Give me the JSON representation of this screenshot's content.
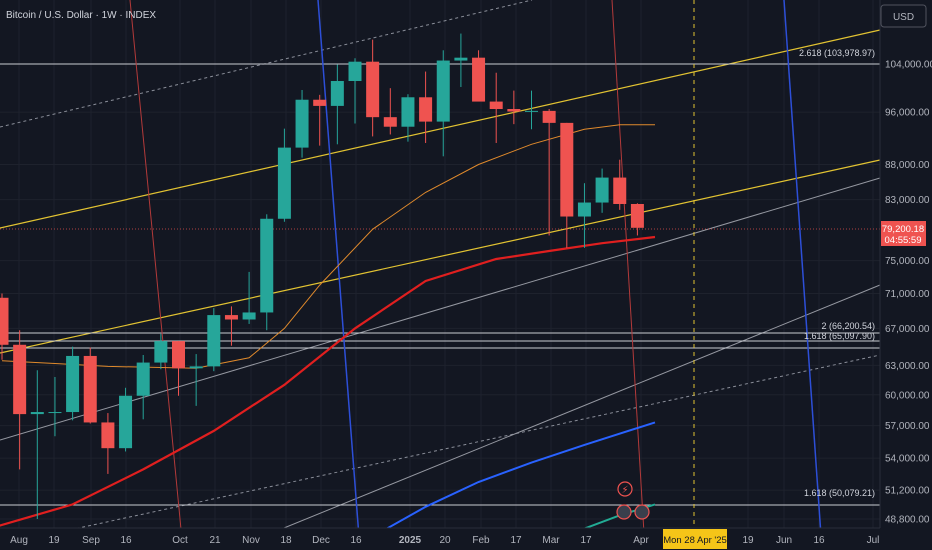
{
  "header": {
    "symbol_title": "Bitcoin / U.S. Dollar · 1W · INDEX",
    "currency_button": "USD"
  },
  "colors": {
    "background": "#131722",
    "up": "#26a69a",
    "down": "#ef5350",
    "yellow_line": "#e2c332",
    "ema_orange": "#e08a2c",
    "ema_red": "#e01f1f",
    "ema_blue": "#2962ff",
    "ema_teal": "#22ab94",
    "vertical_blue": "#2d4fd8",
    "vertical_red": "#b33a3a",
    "crosshair_label": "#f5c518"
  },
  "chart_data": {
    "type": "candlestick",
    "timeframe": "1W",
    "y_scale": "log",
    "y_ticks": [
      "104,000.00",
      "96,000.00",
      "88,000.00",
      "83,000.00",
      "75,000.00",
      "71,000.00",
      "67,000.00",
      "63,000.00",
      "60,000.00",
      "57,000.00",
      "54,000.00",
      "51,200.00",
      "48,800.00"
    ],
    "x_ticks": [
      "Aug",
      "19",
      "Sep",
      "16",
      "Oct",
      "21",
      "Nov",
      "18",
      "Dec",
      "16",
      "2025",
      "20",
      "Feb",
      "17",
      "Mar",
      "17",
      "Apr",
      "19",
      "Jun",
      "16",
      "Jul"
    ],
    "last_price": "79,200.18",
    "countdown": "04:55:59",
    "crosshair_date": "Mon 28 Apr '25",
    "fib_levels": [
      {
        "label": "2.618 (103,978.97)",
        "value": 103978.97
      },
      {
        "label": "2 (66,200.54)",
        "value": 66200.54
      },
      {
        "label": "1.618 (65,097.90)",
        "value": 65097.9
      },
      {
        "label": "1.618 (50,079.21)",
        "value": 50079.21
      }
    ],
    "candles": [
      {
        "t": "2024-07-22",
        "o": 70500,
        "h": 71000,
        "l": 63600,
        "c": 65200
      },
      {
        "t": "2024-07-29",
        "o": 65200,
        "h": 66800,
        "l": 53000,
        "c": 58100
      },
      {
        "t": "2024-08-05",
        "o": 58100,
        "h": 62500,
        "l": 48800,
        "c": 58300
      },
      {
        "t": "2024-08-12",
        "o": 58300,
        "h": 61800,
        "l": 56000,
        "c": 58300
      },
      {
        "t": "2024-08-19",
        "o": 58300,
        "h": 65000,
        "l": 57500,
        "c": 64000
      },
      {
        "t": "2024-08-26",
        "o": 64000,
        "h": 64900,
        "l": 57200,
        "c": 57300
      },
      {
        "t": "2024-09-02",
        "o": 57300,
        "h": 58200,
        "l": 52600,
        "c": 54900
      },
      {
        "t": "2024-09-09",
        "o": 54900,
        "h": 60700,
        "l": 54600,
        "c": 59900
      },
      {
        "t": "2024-09-16",
        "o": 59900,
        "h": 64100,
        "l": 57600,
        "c": 63300
      },
      {
        "t": "2024-09-23",
        "o": 63300,
        "h": 66400,
        "l": 62600,
        "c": 65600
      },
      {
        "t": "2024-09-30",
        "o": 65600,
        "h": 65600,
        "l": 59900,
        "c": 62700
      },
      {
        "t": "2024-10-07",
        "o": 62700,
        "h": 64200,
        "l": 58900,
        "c": 62900
      },
      {
        "t": "2024-10-14",
        "o": 62900,
        "h": 69300,
        "l": 62400,
        "c": 68500
      },
      {
        "t": "2024-10-21",
        "o": 68500,
        "h": 69500,
        "l": 65100,
        "c": 68000
      },
      {
        "t": "2024-10-28",
        "o": 68000,
        "h": 73600,
        "l": 67500,
        "c": 68800
      },
      {
        "t": "2024-11-04",
        "o": 68800,
        "h": 81000,
        "l": 66800,
        "c": 80400
      },
      {
        "t": "2024-11-11",
        "o": 80400,
        "h": 93400,
        "l": 80000,
        "c": 90500
      },
      {
        "t": "2024-11-18",
        "o": 90500,
        "h": 99600,
        "l": 89000,
        "c": 98000
      },
      {
        "t": "2024-11-25",
        "o": 98000,
        "h": 98800,
        "l": 90800,
        "c": 97000
      },
      {
        "t": "2024-12-02",
        "o": 97000,
        "h": 103900,
        "l": 91000,
        "c": 101100
      },
      {
        "t": "2024-12-09",
        "o": 101100,
        "h": 105000,
        "l": 94200,
        "c": 104400
      },
      {
        "t": "2024-12-16",
        "o": 104400,
        "h": 108300,
        "l": 92200,
        "c": 95200
      },
      {
        "t": "2024-12-23",
        "o": 95200,
        "h": 99900,
        "l": 92500,
        "c": 93700
      },
      {
        "t": "2024-12-30",
        "o": 93700,
        "h": 98900,
        "l": 91400,
        "c": 98400
      },
      {
        "t": "2025-01-06",
        "o": 98400,
        "h": 102700,
        "l": 91200,
        "c": 94500
      },
      {
        "t": "2025-01-13",
        "o": 94500,
        "h": 106400,
        "l": 89200,
        "c": 104600
      },
      {
        "t": "2025-01-20",
        "o": 104600,
        "h": 109400,
        "l": 100100,
        "c": 105100
      },
      {
        "t": "2025-01-27",
        "o": 105100,
        "h": 106400,
        "l": 97800,
        "c": 97700
      },
      {
        "t": "2025-02-03",
        "o": 97700,
        "h": 102500,
        "l": 91200,
        "c": 96500
      },
      {
        "t": "2025-02-10",
        "o": 96500,
        "h": 99500,
        "l": 94100,
        "c": 96100
      },
      {
        "t": "2025-02-17",
        "o": 96100,
        "h": 99500,
        "l": 93300,
        "c": 96200
      },
      {
        "t": "2025-02-24",
        "o": 96200,
        "h": 96500,
        "l": 78200,
        "c": 94300
      },
      {
        "t": "2025-03-03",
        "o": 94300,
        "h": 94300,
        "l": 76600,
        "c": 80700
      },
      {
        "t": "2025-03-10",
        "o": 80700,
        "h": 85300,
        "l": 76600,
        "c": 82600
      },
      {
        "t": "2025-03-17",
        "o": 82600,
        "h": 87400,
        "l": 81200,
        "c": 86100
      },
      {
        "t": "2025-03-24",
        "o": 86100,
        "h": 88700,
        "l": 81600,
        "c": 82400
      },
      {
        "t": "2025-03-31",
        "o": 82400,
        "h": 82500,
        "l": 78200,
        "c": 79200
      }
    ],
    "ema_orange": [
      [
        0,
        63500
      ],
      [
        3,
        63200
      ],
      [
        6,
        62900
      ],
      [
        11,
        62700
      ],
      [
        14,
        63800
      ],
      [
        16,
        67000
      ],
      [
        18,
        72000
      ],
      [
        21,
        79000
      ],
      [
        24,
        84000
      ],
      [
        27,
        88000
      ],
      [
        30,
        91000
      ],
      [
        33,
        93300
      ],
      [
        35,
        94000
      ],
      [
        37,
        94000
      ]
    ],
    "ema_red": [
      [
        -2,
        47500
      ],
      [
        4,
        50000
      ],
      [
        8,
        53000
      ],
      [
        12,
        56500
      ],
      [
        16,
        61000
      ],
      [
        20,
        67000
      ],
      [
        24,
        72500
      ],
      [
        28,
        75200
      ],
      [
        31,
        76200
      ],
      [
        34,
        77200
      ],
      [
        37,
        78000
      ]
    ],
    "ema_blue": [
      [
        20.5,
        47000
      ],
      [
        24,
        49800
      ],
      [
        27,
        51900
      ],
      [
        30,
        53600
      ],
      [
        33,
        55200
      ],
      [
        37,
        57300
      ]
    ],
    "ema_teal": [
      [
        32,
        47500
      ],
      [
        35,
        49100
      ],
      [
        37,
        50000
      ]
    ]
  }
}
